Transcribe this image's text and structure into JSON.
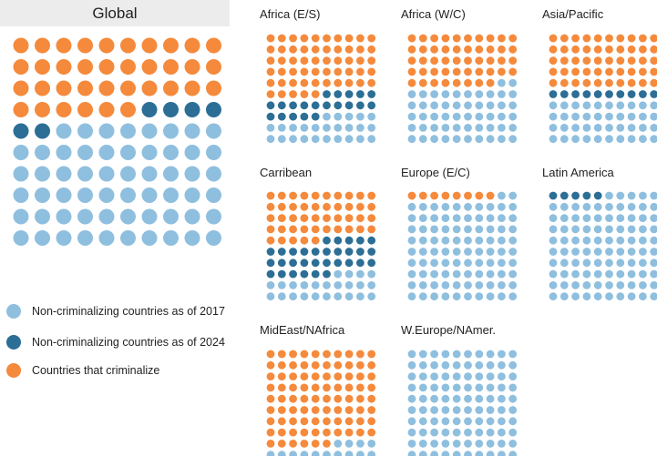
{
  "colors": {
    "non_criminalizing_2017": "#8fbfdf",
    "non_criminalizing_2024": "#2c6e95",
    "criminalize": "#f58a3c",
    "title_bar": "#ececec"
  },
  "legend": [
    {
      "key": "non_criminalizing_2017",
      "label": "Non-criminalizing countries as of 2017"
    },
    {
      "key": "non_criminalizing_2024",
      "label": "Non-criminalizing countries as of 2024"
    },
    {
      "key": "criminalize",
      "label": "Countries that criminalize"
    }
  ],
  "chart_data": {
    "type": "waffle",
    "grid": "10x10",
    "units": "percent of countries (one dot = 1%)",
    "series_order": [
      "criminalize",
      "non_criminalizing_2024",
      "non_criminalizing_2017"
    ],
    "panels": [
      {
        "id": "global",
        "title": "Global",
        "values": {
          "criminalize": 36,
          "non_criminalizing_2024": 6,
          "non_criminalizing_2017": 58
        }
      },
      {
        "id": "africa-es",
        "title": "Africa (E/S)",
        "values": {
          "criminalize": 55,
          "non_criminalizing_2024": 20,
          "non_criminalizing_2017": 25
        }
      },
      {
        "id": "africa-wc",
        "title": "Africa (W/C)",
        "values": {
          "criminalize": 48,
          "non_criminalizing_2024": 0,
          "non_criminalizing_2017": 52
        }
      },
      {
        "id": "asia-pacific",
        "title": "Asia/Pacific",
        "values": {
          "criminalize": 50,
          "non_criminalizing_2024": 10,
          "non_criminalizing_2017": 40
        }
      },
      {
        "id": "carribean",
        "title": "Carribean",
        "values": {
          "criminalize": 45,
          "non_criminalizing_2024": 31,
          "non_criminalizing_2017": 24
        }
      },
      {
        "id": "europe-ec",
        "title": "Europe (E/C)",
        "values": {
          "criminalize": 8,
          "non_criminalizing_2024": 0,
          "non_criminalizing_2017": 92
        }
      },
      {
        "id": "latin-america",
        "title": "Latin America",
        "values": {
          "criminalize": 0,
          "non_criminalizing_2024": 5,
          "non_criminalizing_2017": 95
        }
      },
      {
        "id": "mideast-nafrica",
        "title": "MidEast/NAfrica",
        "values": {
          "criminalize": 86,
          "non_criminalizing_2024": 0,
          "non_criminalizing_2017": 14
        }
      },
      {
        "id": "weurope-namer",
        "title": "W.Europe/NAmer.",
        "values": {
          "criminalize": 0,
          "non_criminalizing_2024": 0,
          "non_criminalizing_2017": 100
        }
      }
    ]
  }
}
